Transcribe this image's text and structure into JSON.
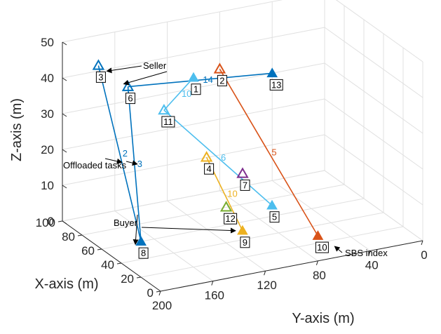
{
  "chart_data": {
    "type": "scatter",
    "xlabel": "X-axis (m)",
    "ylabel": "Y-axis (m)",
    "zlabel": "Z-axis (m)",
    "x_ticks": [
      "0",
      "20",
      "40",
      "60",
      "80",
      "100"
    ],
    "y_ticks": [
      "0",
      "40",
      "80",
      "120",
      "160",
      "200"
    ],
    "z_ticks": [
      "0",
      "10",
      "20",
      "30",
      "40",
      "50"
    ],
    "xlim": [
      0,
      100
    ],
    "ylim": [
      0,
      200
    ],
    "zlim": [
      0,
      50
    ],
    "grid": true,
    "base_stations": [
      {
        "id": "1",
        "x": 100,
        "y": 100,
        "z": 33,
        "role": "buyer",
        "color": "#4DBEEE"
      },
      {
        "id": "2",
        "x": 100,
        "y": 80,
        "z": 34,
        "role": "seller",
        "color": "#D95319"
      },
      {
        "id": "3",
        "x": 90,
        "y": 180,
        "z": 44,
        "role": "seller",
        "color": "#0072BD"
      },
      {
        "id": "4",
        "x": 60,
        "y": 120,
        "z": 20,
        "role": "seller",
        "color": "#EDB120"
      },
      {
        "id": "5",
        "x": 20,
        "y": 100,
        "z": 13,
        "role": "buyer",
        "color": "#4DBEEE"
      },
      {
        "id": "6",
        "x": 100,
        "y": 150,
        "z": 34,
        "role": "seller",
        "color": "#0072BD"
      },
      {
        "id": "7",
        "x": 50,
        "y": 100,
        "z": 16,
        "role": "seller",
        "color": "#7E2F8E"
      },
      {
        "id": "8",
        "x": 60,
        "y": 170,
        "z": 0,
        "role": "buyer",
        "color": "#0072BD"
      },
      {
        "id": "9",
        "x": 10,
        "y": 130,
        "z": 10,
        "role": "buyer",
        "color": "#EDB120"
      },
      {
        "id": "10",
        "x": 0,
        "y": 80,
        "z": 7,
        "role": "buyer",
        "color": "#D95319"
      },
      {
        "id": "11",
        "x": 90,
        "y": 130,
        "z": 28,
        "role": "seller",
        "color": "#4DBEEE"
      },
      {
        "id": "12",
        "x": 40,
        "y": 120,
        "z": 10,
        "role": "seller",
        "color": "#77AC30"
      },
      {
        "id": "13",
        "x": 100,
        "y": 40,
        "z": 30,
        "role": "buyer",
        "color": "#0072BD"
      }
    ],
    "links": [
      {
        "from": "3",
        "to": "8",
        "tasks": "2",
        "color": "#0072BD"
      },
      {
        "from": "6",
        "to": "8",
        "tasks": "3",
        "color": "#0072BD"
      },
      {
        "from": "6",
        "to": "13",
        "tasks": "14",
        "color": "#0072BD"
      },
      {
        "from": "11",
        "to": "1",
        "tasks": "10",
        "color": "#4DBEEE"
      },
      {
        "from": "11",
        "to": "5",
        "tasks": "6",
        "color": "#4DBEEE"
      },
      {
        "from": "4",
        "to": "9",
        "tasks": "10",
        "color": "#EDB120"
      },
      {
        "from": "2",
        "to": "10",
        "tasks": "5",
        "color": "#D95319"
      }
    ],
    "annotations": [
      {
        "text": "Seller"
      },
      {
        "text": "Offloaded tasks"
      },
      {
        "text": "Buyer"
      },
      {
        "text": "SBS index"
      }
    ]
  }
}
